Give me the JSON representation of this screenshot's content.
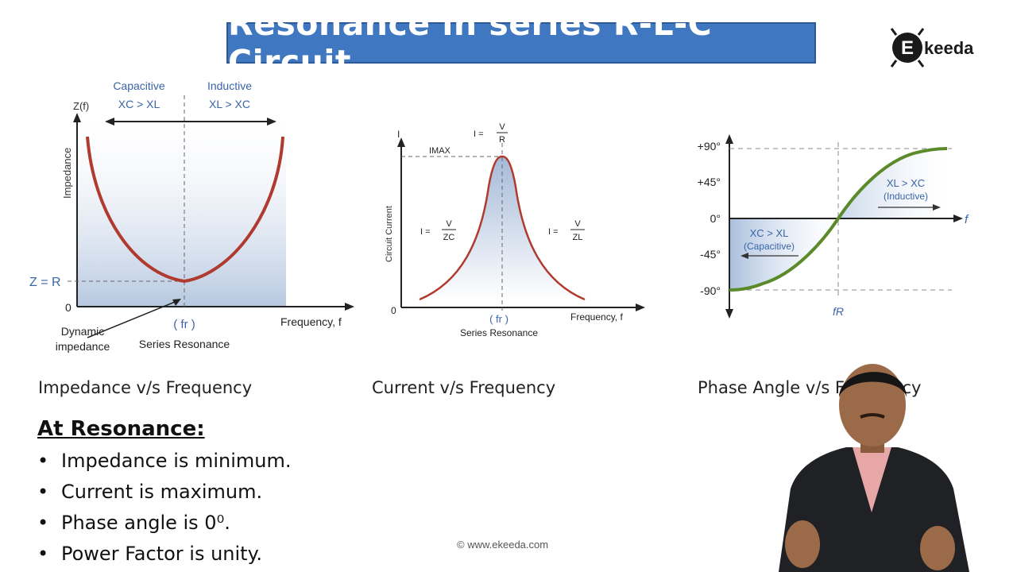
{
  "title": "Resonance in series R-L-C Circuit",
  "logo": {
    "letter": "E",
    "text": "keeda"
  },
  "graph1": {
    "caption": "Impedance v/s Frequency",
    "y_axis_label": "Z(f)",
    "y_title": "Impedance",
    "capacitive_label": "Capacitive",
    "capacitive_condition": "XC > XL",
    "inductive_label": "Inductive",
    "inductive_condition": "XL > XC",
    "zr_label": "Z = R",
    "origin": "0",
    "x_label": "Frequency, f",
    "fr_label": "( fr )",
    "series_resonance": "Series Resonance",
    "dynamic_1": "Dynamic",
    "dynamic_2": "impedance"
  },
  "graph2": {
    "caption": "Current v/s Frequency",
    "y_axis_label": "I",
    "y_title": "Circuit Current",
    "imax": "IMAX",
    "i_eq": "I =",
    "top_num": "V",
    "top_den": "R",
    "left_num": "V",
    "left_den": "ZC",
    "right_num": "V",
    "right_den": "ZL",
    "origin": "0",
    "x_label": "Frequency, f",
    "fr_label": "( fr )",
    "series_resonance": "Series Resonance"
  },
  "graph3": {
    "caption": "Phase Angle v/s Frequency",
    "ticks": [
      "+90°",
      "+45°",
      "0°",
      "-45°",
      "-90°"
    ],
    "inductive_condition": "XL > XC",
    "inductive_label": "(Inductive)",
    "capacitive_condition": "XC > XL",
    "capacitive_label": "(Capacitive)",
    "x_label": "f",
    "fr_label": "fR"
  },
  "resonance": {
    "heading": "At Resonance:",
    "points": [
      "Impedance is minimum.",
      "Current is maximum.",
      "Phase angle is 0⁰.",
      "Power Factor is unity."
    ]
  },
  "copyright": "© www.ekeeda.com",
  "colors": {
    "curve_red": "#b03a2e",
    "curve_green": "#5a8a2a",
    "fill_blue": "#9fb6d6",
    "title_bg": "#3f78c0",
    "label_blue": "#3a64a8"
  }
}
